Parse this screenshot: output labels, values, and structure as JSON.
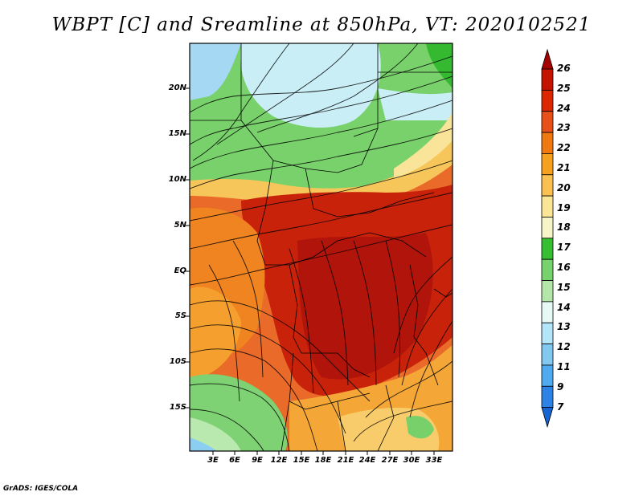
{
  "title": "WBPT [C] and Sreamline at 850hPa, VT: 2020102521",
  "credit": "GrADS: IGES/COLA",
  "latitude_labels": [
    "20N",
    "15N",
    "10N",
    "5N",
    "EQ",
    "5S",
    "10S",
    "15S"
  ],
  "latitude_values": [
    20,
    15,
    10,
    5,
    0,
    -5,
    -10,
    -15
  ],
  "longitude_labels": [
    "3E",
    "6E",
    "9E",
    "12E",
    "15E",
    "18E",
    "21E",
    "24E",
    "27E",
    "30E",
    "33E"
  ],
  "longitude_values": [
    3,
    6,
    9,
    12,
    15,
    18,
    21,
    24,
    27,
    30,
    33
  ],
  "colorbar": {
    "labels": [
      "26",
      "25",
      "24",
      "23",
      "22",
      "21",
      "20",
      "19",
      "18",
      "17",
      "16",
      "15",
      "14",
      "13",
      "12",
      "11",
      "9",
      "7"
    ],
    "colors": [
      "#a50000",
      "#c41400",
      "#dc2800",
      "#e8501a",
      "#f07810",
      "#f5a01e",
      "#fac050",
      "#fae696",
      "#f5f5c8",
      "#37be32",
      "#78d26e",
      "#b4e6aa",
      "#e6faf5",
      "#b4e6fa",
      "#82c8f0",
      "#50aaf0",
      "#2d82e6",
      "#1464d2"
    ]
  },
  "colors": {
    "hot": "#c41400",
    "warm": "#f07810",
    "green": "#6ccf5f",
    "cool": "#c8ecf5"
  }
}
